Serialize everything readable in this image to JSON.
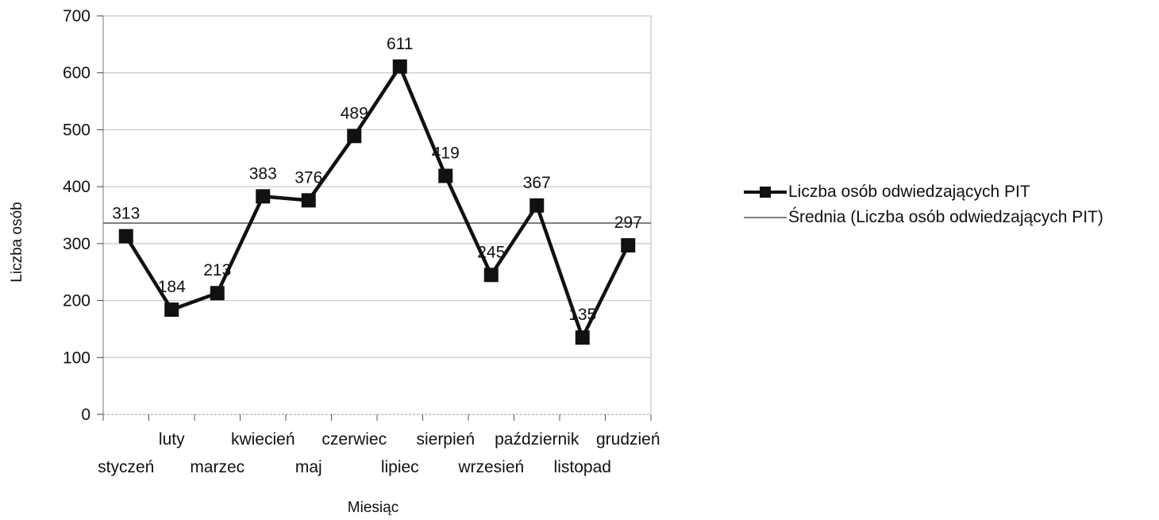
{
  "chart_data": {
    "type": "line",
    "categories": [
      "styczeń",
      "luty",
      "marzec",
      "kwiecień",
      "maj",
      "czerwiec",
      "lipiec",
      "sierpień",
      "wrzesień",
      "październik",
      "listopad",
      "grudzień"
    ],
    "series": [
      {
        "name": "Liczba osób odwiedzających PIT",
        "values": [
          313,
          184,
          213,
          383,
          376,
          489,
          611,
          419,
          245,
          367,
          135,
          297
        ],
        "data_labels": [
          "313",
          "184",
          "213",
          "383",
          "376",
          "489",
          "611",
          "419",
          "245",
          "367",
          "135",
          "297"
        ],
        "color": "#111111",
        "marker": "square"
      },
      {
        "name": "Średnia (Liczba osób odwiedzających PIT)",
        "value": 336,
        "color": "#555555"
      }
    ],
    "xlabel": "Miesiąc",
    "ylabel": "Liczba osób",
    "ylim": [
      0,
      700
    ],
    "yticks": [
      "0",
      "100",
      "200",
      "300",
      "400",
      "500",
      "600",
      "700"
    ],
    "grid": true,
    "legend_position": "right"
  }
}
